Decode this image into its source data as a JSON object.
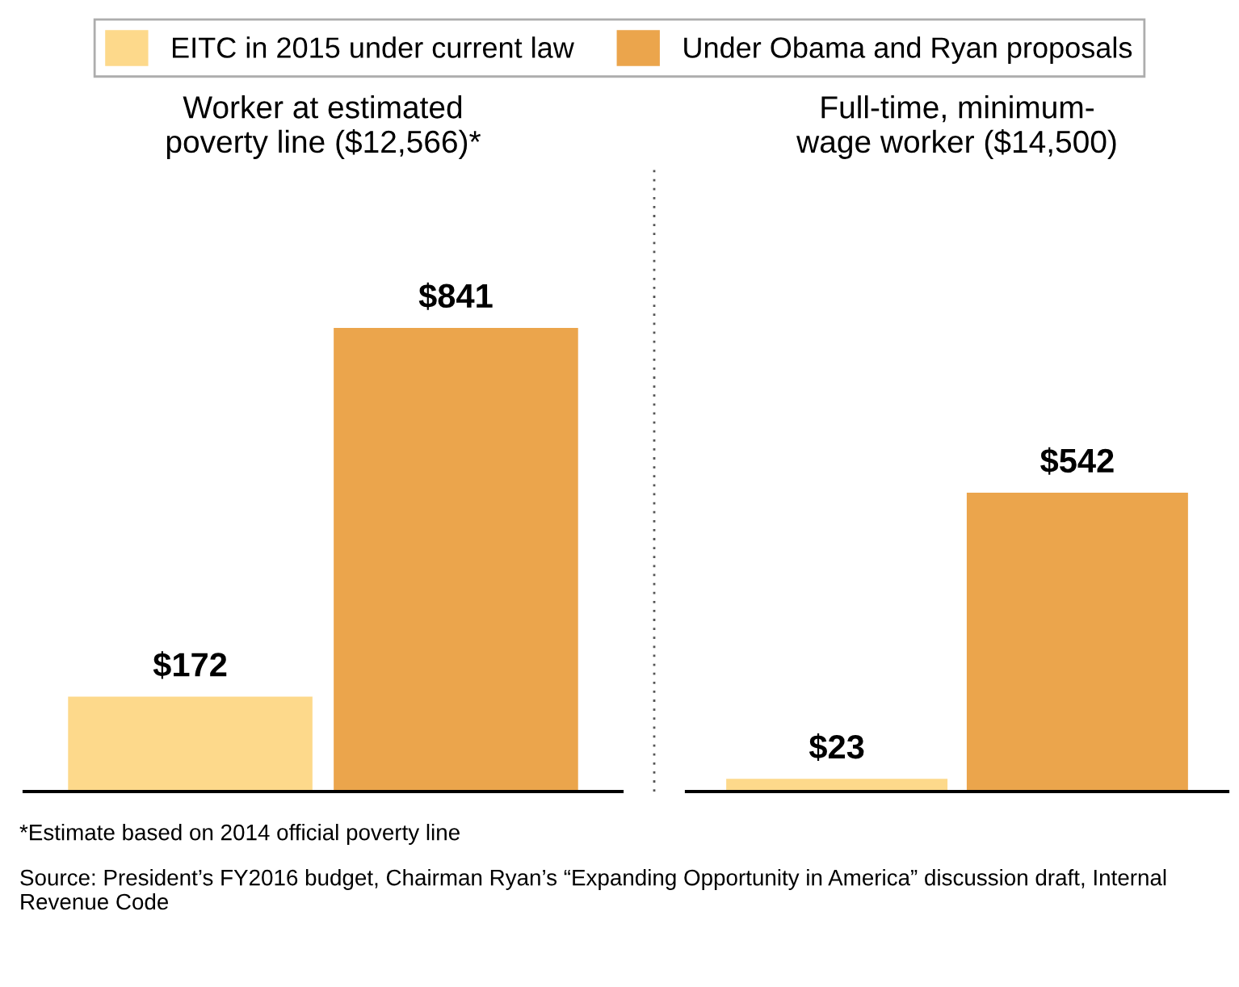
{
  "chart_data": [
    {
      "type": "bar",
      "title": "Worker at estimated\npoverty line ($12,566)*",
      "categories": [
        null
      ],
      "legend": "top",
      "series": [
        {
          "name": "EITC in 2015 under current law",
          "color": "#fdd98b",
          "values": [
            172
          ],
          "value_labels": [
            "$172"
          ]
        },
        {
          "name": "Under Obama and Ryan proposals",
          "color": "#eba54c",
          "values": [
            841
          ],
          "value_labels": [
            "$841"
          ]
        }
      ]
    },
    {
      "type": "bar",
      "title": "Full-time, minimum-\nwage worker ($14,500)",
      "categories": [
        null
      ],
      "series": [
        {
          "color": "#fdd98b",
          "values": [
            23
          ],
          "value_labels": [
            "$23"
          ]
        },
        {
          "color": "#eba54c",
          "values": [
            542
          ],
          "value_labels": [
            "$542"
          ]
        }
      ],
      "annotations": [
        "*Estimate based on 2014 official poverty line",
        "Source: President’s FY2016 budget, Chairman Ryan’s “Expanding Opportunity in America” discussion draft, Internal Revenue Code"
      ]
    }
  ]
}
